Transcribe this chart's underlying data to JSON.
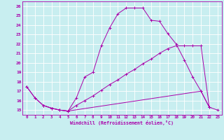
{
  "bg_color": "#c8eef0",
  "grid_color": "#ffffff",
  "line_color": "#aa00aa",
  "xlabel": "Windchill (Refroidissement éolien,°C)",
  "xlim_min": -0.5,
  "xlim_max": 23.5,
  "ylim_min": 14.5,
  "ylim_max": 26.5,
  "xticks": [
    0,
    1,
    2,
    3,
    4,
    5,
    6,
    7,
    8,
    9,
    10,
    11,
    12,
    13,
    14,
    15,
    16,
    17,
    18,
    19,
    20,
    21,
    22,
    23
  ],
  "yticks": [
    15,
    16,
    17,
    18,
    19,
    20,
    21,
    22,
    23,
    24,
    25,
    26
  ],
  "line1_x": [
    0,
    1,
    2,
    3,
    4,
    5,
    6,
    7,
    8,
    9,
    10,
    11,
    12,
    13,
    14,
    15,
    16,
    17,
    18,
    19,
    20,
    21,
    22
  ],
  "line1_y": [
    17.5,
    16.3,
    15.5,
    15.2,
    15.0,
    14.9,
    16.3,
    18.5,
    19.0,
    21.8,
    23.7,
    25.2,
    25.8,
    25.8,
    25.8,
    24.5,
    24.4,
    23.1,
    22.0,
    20.3,
    18.5,
    17.0,
    15.3
  ],
  "line2_x": [
    0,
    1,
    2,
    3,
    4,
    5,
    6,
    7,
    8,
    9,
    10,
    11,
    12,
    13,
    14,
    15,
    16,
    17,
    18,
    19,
    20,
    21,
    22
  ],
  "line2_y": [
    17.5,
    16.3,
    15.5,
    15.2,
    15.0,
    14.9,
    15.5,
    16.0,
    16.5,
    17.1,
    17.7,
    18.2,
    18.8,
    19.3,
    19.9,
    20.4,
    21.0,
    21.5,
    21.8,
    21.8,
    21.8,
    21.8,
    15.3
  ],
  "line3_x": [
    2,
    3,
    4,
    5,
    21,
    22,
    23
  ],
  "line3_y": [
    15.5,
    15.2,
    15.0,
    14.9,
    17.0,
    15.3,
    15.0
  ]
}
